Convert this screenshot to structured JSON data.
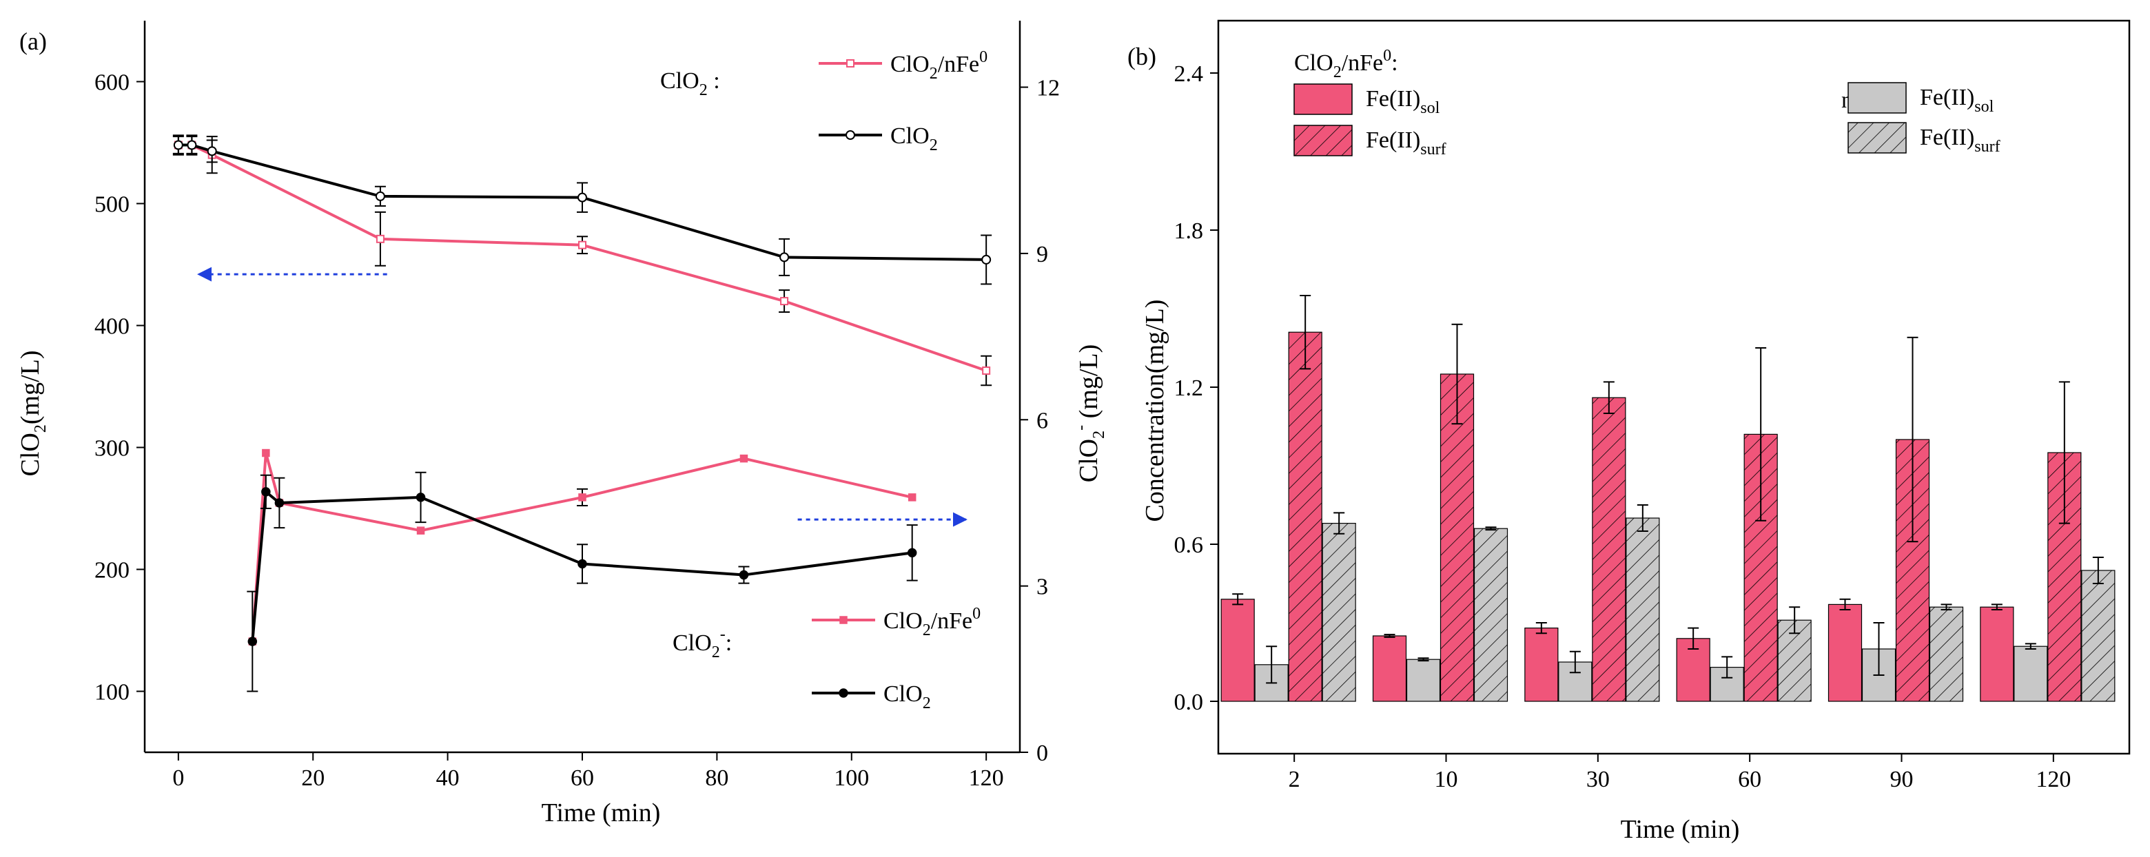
{
  "colors": {
    "pink": "#f0557a",
    "black": "#000000",
    "gray": "#c8c8c8",
    "blue": "#1f3fdd"
  },
  "chart_data": [
    {
      "panel_label": "(a)",
      "type": "line",
      "xlabel": "Time (min)",
      "ylabel": "ClO",
      "ylabel_sub": "2",
      "ylabel_rest": "(mg/L)",
      "y2label": "ClO",
      "y2label_sub": "2",
      "y2label_sup": "-",
      "y2label_rest": " (mg/L)",
      "xlim": [
        -5,
        125
      ],
      "ylim": [
        50,
        650
      ],
      "y2lim": [
        0,
        13.2
      ],
      "xticks": [
        0,
        20,
        40,
        60,
        80,
        100,
        120
      ],
      "yticks": [
        100,
        200,
        300,
        400,
        500,
        600
      ],
      "y2ticks": [
        0,
        3,
        6,
        9,
        12
      ],
      "group_labels": [
        {
          "main": "ClO",
          "sub": "2",
          "sup": "",
          "rest": " :"
        },
        {
          "main": "ClO",
          "sub": "2",
          "sup": "-",
          "rest": ":"
        }
      ],
      "series": [
        {
          "name": "ClO2/nFe0",
          "name_main": "ClO",
          "name_sub": "2",
          "name_rest": "/nFe",
          "name_sup": "0",
          "axis": "left",
          "color": "#f0557a",
          "marker": "open-square",
          "x": [
            0,
            2,
            5,
            30,
            60,
            90,
            120
          ],
          "y": [
            548,
            548,
            540,
            471,
            466,
            420,
            363
          ],
          "err": [
            8,
            8,
            15,
            22,
            7,
            9,
            12
          ]
        },
        {
          "name": "ClO2",
          "name_main": "ClO",
          "name_sub": "2",
          "name_rest": "",
          "name_sup": "",
          "axis": "left",
          "color": "#000000",
          "marker": "open-circle",
          "x": [
            0,
            2,
            5,
            30,
            60,
            90,
            120
          ],
          "y": [
            548,
            548,
            543,
            506,
            505,
            456,
            454
          ],
          "err": [
            7,
            7,
            9,
            8,
            12,
            15,
            20
          ]
        },
        {
          "name": "ClO2/nFe0",
          "name_main": "ClO",
          "name_sub": "2",
          "name_rest": "/nFe",
          "name_sup": "0",
          "axis": "right",
          "color": "#f0557a",
          "marker": "filled-square",
          "x": [
            11,
            13,
            15,
            36,
            60,
            84,
            109
          ],
          "y": [
            2.0,
            5.4,
            4.5,
            4.0,
            4.6,
            5.3,
            4.6
          ],
          "err": [
            0.9,
            0.0,
            0.0,
            0.0,
            0.15,
            0.0,
            0.0
          ]
        },
        {
          "name": "ClO2",
          "name_main": "ClO",
          "name_sub": "2",
          "name_rest": "",
          "name_sup": "",
          "axis": "right",
          "color": "#000000",
          "marker": "filled-circle",
          "x": [
            11,
            13,
            15,
            36,
            60,
            84,
            109
          ],
          "y": [
            2.0,
            4.7,
            4.5,
            4.6,
            3.4,
            3.2,
            3.6
          ],
          "err": [
            0,
            0.3,
            0.45,
            0.45,
            0.35,
            0.15,
            0.5
          ]
        }
      ],
      "annotations": [
        {
          "type": "dashed-arrow",
          "direction": "left",
          "color": "#1f3fdd",
          "x": [
            3,
            31
          ],
          "y": 442,
          "axis": "left"
        },
        {
          "type": "dashed-arrow",
          "direction": "right",
          "color": "#1f3fdd",
          "x": [
            92,
            117
          ],
          "y": 4.2,
          "axis": "right"
        }
      ]
    },
    {
      "panel_label": "(b)",
      "type": "bar",
      "xlabel": "Time (min)",
      "ylabel": "Concentration(mg/L)",
      "categories": [
        "2",
        "10",
        "30",
        "60",
        "90",
        "120"
      ],
      "ylim": [
        -0.2,
        2.6
      ],
      "yticks": [
        0.0,
        0.6,
        1.2,
        1.8,
        2.4
      ],
      "yticklabels": [
        "0.0",
        "0.6",
        "1.2",
        "1.8",
        "2.4"
      ],
      "legend_groups": [
        {
          "main": "ClO",
          "sub": "2",
          "rest": "/nFe",
          "sup": "0",
          "tail": ":"
        },
        {
          "main": "nFe",
          "sub": "",
          "rest": "",
          "sup": "0",
          "tail": ":"
        }
      ],
      "series": [
        {
          "name": "Fe(II)sol",
          "group": 0,
          "name_main": "Fe(II)",
          "name_sub": "sol",
          "color": "#f0557a",
          "hatch": false,
          "values": [
            0.39,
            0.25,
            0.28,
            0.24,
            0.37,
            0.36
          ],
          "err": [
            0.02,
            0.005,
            0.02,
            0.04,
            0.02,
            0.01
          ]
        },
        {
          "name": "Fe(II)sol",
          "group": 1,
          "name_main": "Fe(II)",
          "name_sub": "sol",
          "color": "#c8c8c8",
          "hatch": false,
          "values": [
            0.14,
            0.16,
            0.15,
            0.13,
            0.2,
            0.21
          ],
          "err": [
            0.07,
            0.005,
            0.04,
            0.04,
            0.1,
            0.01
          ]
        },
        {
          "name": "Fe(II)surf",
          "group": 0,
          "name_main": "Fe(II)",
          "name_sub": "surf",
          "color": "#f0557a",
          "hatch": true,
          "values": [
            1.41,
            1.25,
            1.16,
            1.02,
            1.0,
            0.95
          ],
          "err": [
            0.14,
            0.19,
            0.06,
            0.33,
            0.39,
            0.27
          ]
        },
        {
          "name": "Fe(II)surf",
          "group": 1,
          "name_main": "Fe(II)",
          "name_sub": "surf",
          "color": "#c8c8c8",
          "hatch": true,
          "values": [
            0.68,
            0.66,
            0.7,
            0.31,
            0.36,
            0.5
          ],
          "err": [
            0.04,
            0.005,
            0.05,
            0.05,
            0.01,
            0.05
          ]
        }
      ]
    }
  ]
}
